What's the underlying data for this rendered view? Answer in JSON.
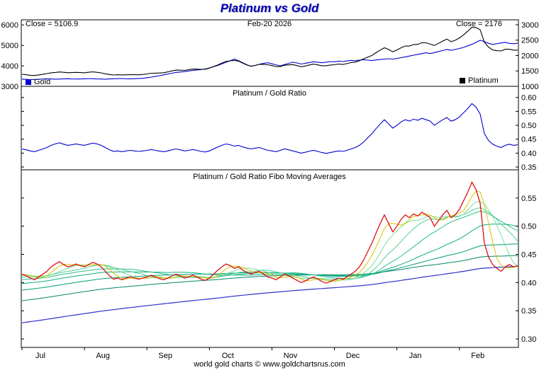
{
  "header": {
    "title": "Platinum vs Gold"
  },
  "footer": {
    "credit": "world gold charts © www.goldchartsrus.com"
  },
  "x_axis": {
    "n": 120,
    "months": [
      "Jul",
      "Aug",
      "Sep",
      "Oct",
      "Nov",
      "Dec",
      "Jan",
      "Feb"
    ],
    "month_start_indices": [
      0,
      15,
      30,
      45,
      60,
      75,
      90,
      105
    ]
  },
  "chart_data": [
    {
      "type": "line",
      "title": "",
      "annotations": {
        "close_left": "Close = 5106.9",
        "date": "Feb-20 2026",
        "close_right": "Close = 2176"
      },
      "left_axis": {
        "ylim": [
          3000,
          6250
        ],
        "ticks": [
          6000,
          5000,
          4000,
          3000
        ]
      },
      "right_axis": {
        "ylim": [
          1000,
          3160
        ],
        "ticks": [
          3000,
          2500,
          2000,
          1500,
          1000
        ]
      },
      "series": [
        {
          "name": "Gold",
          "axis": "left",
          "color": "#0000cc",
          "values": [
            3350,
            3340,
            3330,
            3335,
            3345,
            3355,
            3365,
            3360,
            3350,
            3355,
            3365,
            3370,
            3360,
            3355,
            3360,
            3365,
            3375,
            3370,
            3360,
            3355,
            3350,
            3360,
            3370,
            3375,
            3380,
            3370,
            3365,
            3375,
            3385,
            3390,
            3420,
            3450,
            3480,
            3520,
            3560,
            3600,
            3640,
            3680,
            3700,
            3720,
            3750,
            3780,
            3800,
            3820,
            3850,
            3900,
            3960,
            4020,
            4100,
            4180,
            4250,
            4330,
            4250,
            4150,
            4050,
            3980,
            4020,
            4080,
            4120,
            4150,
            4100,
            4050,
            4000,
            4060,
            4120,
            4180,
            4140,
            4090,
            4120,
            4160,
            4200,
            4180,
            4150,
            4180,
            4210,
            4200,
            4230,
            4210,
            4240,
            4270,
            4250,
            4280,
            4300,
            4280,
            4260,
            4290,
            4310,
            4330,
            4350,
            4330,
            4360,
            4400,
            4440,
            4480,
            4520,
            4560,
            4600,
            4640,
            4600,
            4650,
            4700,
            4750,
            4800,
            4760,
            4800,
            4850,
            4900,
            4980,
            5050,
            5150,
            5250,
            5180,
            5100,
            5050,
            5080,
            5120,
            5150,
            5100,
            5080,
            5107
          ]
        },
        {
          "name": "Platinum",
          "axis": "right",
          "color": "#000000",
          "values": [
            1390,
            1376,
            1359,
            1351,
            1371,
            1392,
            1413,
            1438,
            1451,
            1466,
            1454,
            1442,
            1445,
            1453,
            1445,
            1440,
            1458,
            1469,
            1455,
            1436,
            1407,
            1384,
            1368,
            1377,
            1369,
            1375,
            1380,
            1377,
            1374,
            1383,
            1402,
            1425,
            1427,
            1433,
            1442,
            1469,
            1500,
            1527,
            1524,
            1518,
            1538,
            1561,
            1558,
            1551,
            1555,
            1591,
            1643,
            1696,
            1755,
            1810,
            1828,
            1840,
            1819,
            1751,
            1693,
            1652,
            1680,
            1714,
            1710,
            1702,
            1673,
            1640,
            1640,
            1685,
            1697,
            1705,
            1673,
            1636,
            1660,
            1693,
            1722,
            1697,
            1668,
            1668,
            1692,
            1701,
            1726,
            1709,
            1738,
            1772,
            1785,
            1832,
            1892,
            1947,
            2002,
            2094,
            2177,
            2252,
            2197,
            2122,
            2180,
            2253,
            2309,
            2307,
            2359,
            2362,
            2415,
            2413,
            2369,
            2325,
            2397,
            2470,
            2534,
            2451,
            2496,
            2571,
            2671,
            2789,
            2919,
            2910,
            2835,
            2435,
            2270,
            2182,
            2159,
            2150,
            2204,
            2203,
            2174,
            2176
          ]
        }
      ]
    },
    {
      "type": "line",
      "title": "Platinum / Gold Ratio",
      "color": "#0000cc",
      "ylim": [
        0.34,
        0.64
      ],
      "ticks": [
        0.6,
        0.55,
        0.5,
        0.45,
        0.4,
        0.35
      ],
      "close": 0.43,
      "values": [
        0.415,
        0.412,
        0.408,
        0.405,
        0.41,
        0.415,
        0.42,
        0.428,
        0.433,
        0.437,
        0.432,
        0.428,
        0.43,
        0.433,
        0.43,
        0.428,
        0.432,
        0.436,
        0.433,
        0.428,
        0.42,
        0.412,
        0.406,
        0.408,
        0.405,
        0.408,
        0.41,
        0.408,
        0.406,
        0.408,
        0.41,
        0.413,
        0.41,
        0.407,
        0.405,
        0.408,
        0.412,
        0.415,
        0.412,
        0.408,
        0.41,
        0.413,
        0.41,
        0.406,
        0.404,
        0.408,
        0.415,
        0.422,
        0.428,
        0.433,
        0.43,
        0.425,
        0.428,
        0.422,
        0.418,
        0.415,
        0.418,
        0.42,
        0.415,
        0.41,
        0.408,
        0.405,
        0.41,
        0.415,
        0.412,
        0.408,
        0.404,
        0.4,
        0.403,
        0.407,
        0.41,
        0.406,
        0.402,
        0.399,
        0.402,
        0.405,
        0.408,
        0.406,
        0.41,
        0.415,
        0.42,
        0.428,
        0.44,
        0.455,
        0.47,
        0.488,
        0.505,
        0.52,
        0.505,
        0.49,
        0.5,
        0.512,
        0.52,
        0.515,
        0.522,
        0.518,
        0.525,
        0.52,
        0.515,
        0.5,
        0.51,
        0.52,
        0.528,
        0.515,
        0.52,
        0.53,
        0.545,
        0.56,
        0.578,
        0.565,
        0.54,
        0.47,
        0.445,
        0.432,
        0.425,
        0.42,
        0.428,
        0.432,
        0.428,
        0.43
      ]
    },
    {
      "type": "line",
      "title": "Platinum / Gold Ratio Fibo Moving Averages",
      "ratio_color": "#dd1111",
      "ylim": [
        0.285,
        0.6
      ],
      "ticks": [
        0.55,
        0.5,
        0.45,
        0.4,
        0.35,
        0.3
      ],
      "fibo": {
        "periods": [
          4,
          8,
          13,
          21,
          34,
          55,
          89
        ],
        "colors": [
          "#d4c400",
          "#7ddc9e",
          "#4ccf92",
          "#2bc08a",
          "#0fae83",
          "#009c79",
          "#00876b"
        ],
        "long_period": 160,
        "long_color": "#3333cc",
        "seed_len": 160,
        "seed_from": 0.24
      }
    }
  ]
}
